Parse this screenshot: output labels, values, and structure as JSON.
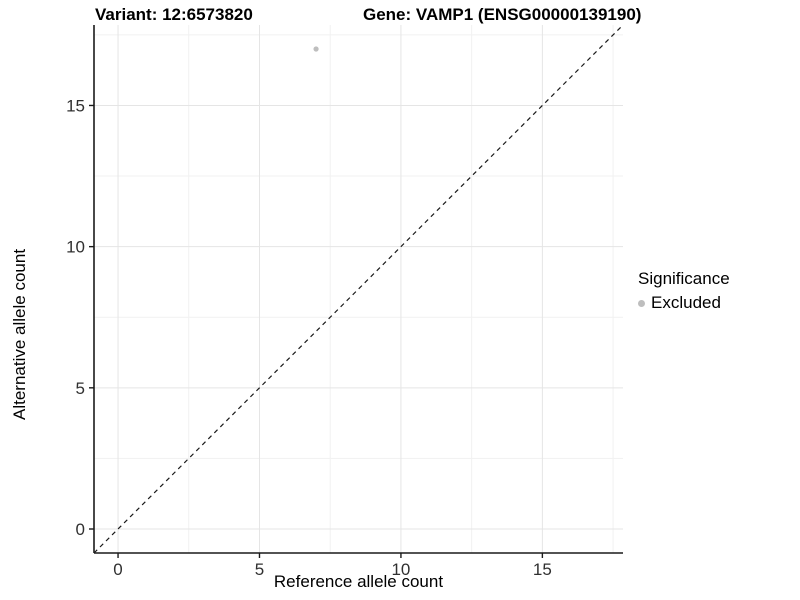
{
  "chart_data": {
    "type": "scatter",
    "title_left": "Variant: 12:6573820",
    "title_right": "Gene: VAMP1 (ENSG00000139190)",
    "xlabel": "Reference allele count",
    "ylabel": "Alternative allele count",
    "xlim": [
      -0.85,
      17.85
    ],
    "ylim": [
      -0.85,
      17.85
    ],
    "xticks": [
      0,
      5,
      10,
      15
    ],
    "yticks": [
      0,
      5,
      10,
      15
    ],
    "minor_gridlines": [
      2.5,
      7.5,
      12.5,
      17.5
    ],
    "grid": "major+minor",
    "points": [
      {
        "x": 7,
        "y": 17,
        "series": "Excluded"
      }
    ],
    "reference_line": {
      "slope": 1,
      "intercept": 0,
      "style": "dashed"
    },
    "legend": {
      "position": "right",
      "title": "Significance",
      "items": [
        {
          "label": "Excluded",
          "color": "#bebebe"
        }
      ]
    },
    "colors": {
      "point": "#bebebe",
      "grid_major": "#e5e5e5",
      "grid_minor": "#f1f1f1",
      "axis": "#1a1a1a",
      "tick_label": "#303030",
      "reference_line": "#1a1a1a",
      "background": "#ffffff"
    }
  }
}
